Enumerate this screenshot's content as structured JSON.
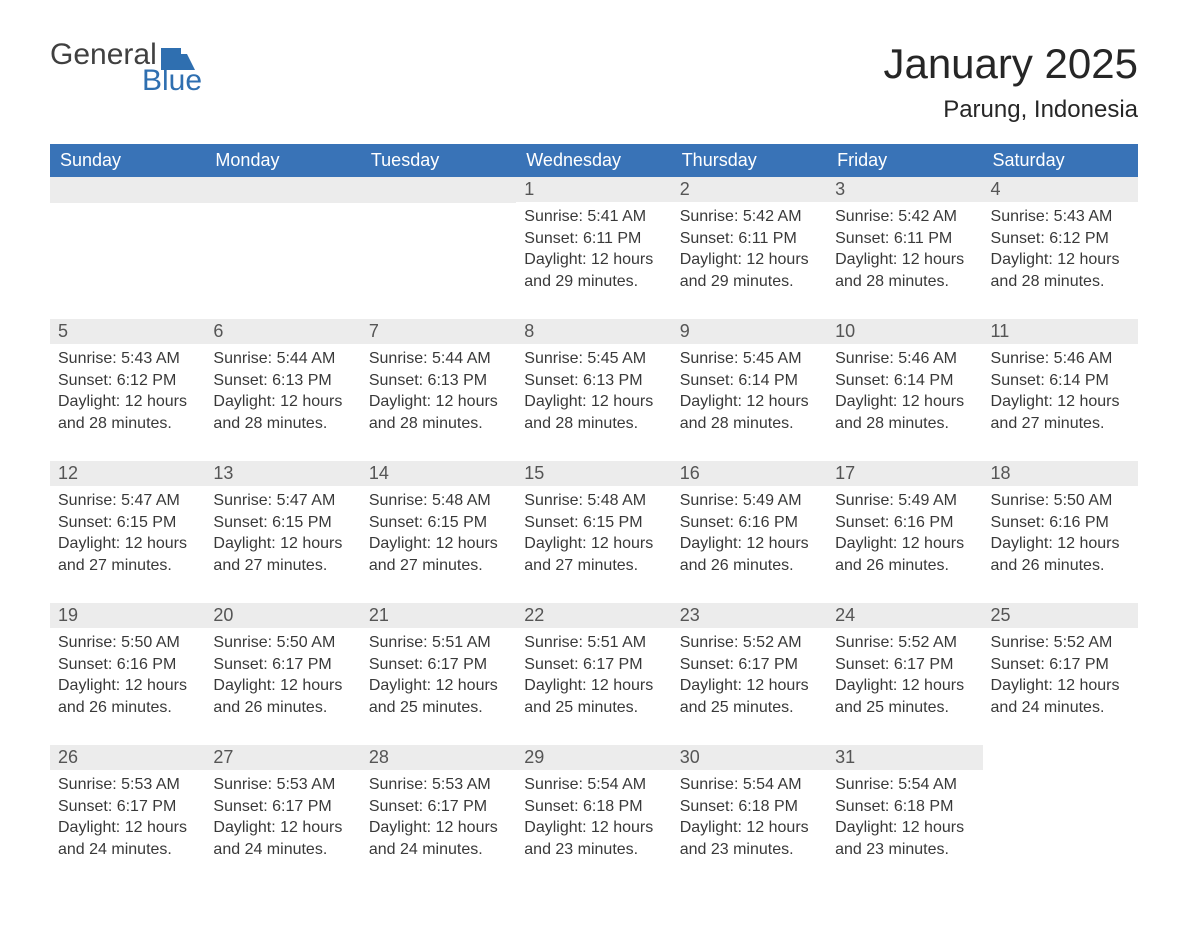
{
  "logo": {
    "text_general": "General",
    "text_blue": "Blue",
    "flag_color": "#2f6fb0",
    "text_color_general": "#404040",
    "text_color_blue": "#2f6fb0"
  },
  "title": {
    "month_year": "January 2025",
    "location": "Parung, Indonesia",
    "title_fontsize": 42,
    "location_fontsize": 24,
    "color": "#262626"
  },
  "styling": {
    "header_bg": "#3973b7",
    "header_text_color": "#ffffff",
    "daynum_bg": "#ececec",
    "daynum_color": "#555555",
    "row_border_color": "#3973b7",
    "body_text_color": "#393939",
    "page_bg": "#ffffff",
    "header_fontsize": 18,
    "daynum_fontsize": 18,
    "body_fontsize": 16
  },
  "weekdays": [
    "Sunday",
    "Monday",
    "Tuesday",
    "Wednesday",
    "Thursday",
    "Friday",
    "Saturday"
  ],
  "leading_blanks": 3,
  "days": [
    {
      "n": "1",
      "sunrise": "Sunrise: 5:41 AM",
      "sunset": "Sunset: 6:11 PM",
      "daylight1": "Daylight: 12 hours",
      "daylight2": "and 29 minutes."
    },
    {
      "n": "2",
      "sunrise": "Sunrise: 5:42 AM",
      "sunset": "Sunset: 6:11 PM",
      "daylight1": "Daylight: 12 hours",
      "daylight2": "and 29 minutes."
    },
    {
      "n": "3",
      "sunrise": "Sunrise: 5:42 AM",
      "sunset": "Sunset: 6:11 PM",
      "daylight1": "Daylight: 12 hours",
      "daylight2": "and 28 minutes."
    },
    {
      "n": "4",
      "sunrise": "Sunrise: 5:43 AM",
      "sunset": "Sunset: 6:12 PM",
      "daylight1": "Daylight: 12 hours",
      "daylight2": "and 28 minutes."
    },
    {
      "n": "5",
      "sunrise": "Sunrise: 5:43 AM",
      "sunset": "Sunset: 6:12 PM",
      "daylight1": "Daylight: 12 hours",
      "daylight2": "and 28 minutes."
    },
    {
      "n": "6",
      "sunrise": "Sunrise: 5:44 AM",
      "sunset": "Sunset: 6:13 PM",
      "daylight1": "Daylight: 12 hours",
      "daylight2": "and 28 minutes."
    },
    {
      "n": "7",
      "sunrise": "Sunrise: 5:44 AM",
      "sunset": "Sunset: 6:13 PM",
      "daylight1": "Daylight: 12 hours",
      "daylight2": "and 28 minutes."
    },
    {
      "n": "8",
      "sunrise": "Sunrise: 5:45 AM",
      "sunset": "Sunset: 6:13 PM",
      "daylight1": "Daylight: 12 hours",
      "daylight2": "and 28 minutes."
    },
    {
      "n": "9",
      "sunrise": "Sunrise: 5:45 AM",
      "sunset": "Sunset: 6:14 PM",
      "daylight1": "Daylight: 12 hours",
      "daylight2": "and 28 minutes."
    },
    {
      "n": "10",
      "sunrise": "Sunrise: 5:46 AM",
      "sunset": "Sunset: 6:14 PM",
      "daylight1": "Daylight: 12 hours",
      "daylight2": "and 28 minutes."
    },
    {
      "n": "11",
      "sunrise": "Sunrise: 5:46 AM",
      "sunset": "Sunset: 6:14 PM",
      "daylight1": "Daylight: 12 hours",
      "daylight2": "and 27 minutes."
    },
    {
      "n": "12",
      "sunrise": "Sunrise: 5:47 AM",
      "sunset": "Sunset: 6:15 PM",
      "daylight1": "Daylight: 12 hours",
      "daylight2": "and 27 minutes."
    },
    {
      "n": "13",
      "sunrise": "Sunrise: 5:47 AM",
      "sunset": "Sunset: 6:15 PM",
      "daylight1": "Daylight: 12 hours",
      "daylight2": "and 27 minutes."
    },
    {
      "n": "14",
      "sunrise": "Sunrise: 5:48 AM",
      "sunset": "Sunset: 6:15 PM",
      "daylight1": "Daylight: 12 hours",
      "daylight2": "and 27 minutes."
    },
    {
      "n": "15",
      "sunrise": "Sunrise: 5:48 AM",
      "sunset": "Sunset: 6:15 PM",
      "daylight1": "Daylight: 12 hours",
      "daylight2": "and 27 minutes."
    },
    {
      "n": "16",
      "sunrise": "Sunrise: 5:49 AM",
      "sunset": "Sunset: 6:16 PM",
      "daylight1": "Daylight: 12 hours",
      "daylight2": "and 26 minutes."
    },
    {
      "n": "17",
      "sunrise": "Sunrise: 5:49 AM",
      "sunset": "Sunset: 6:16 PM",
      "daylight1": "Daylight: 12 hours",
      "daylight2": "and 26 minutes."
    },
    {
      "n": "18",
      "sunrise": "Sunrise: 5:50 AM",
      "sunset": "Sunset: 6:16 PM",
      "daylight1": "Daylight: 12 hours",
      "daylight2": "and 26 minutes."
    },
    {
      "n": "19",
      "sunrise": "Sunrise: 5:50 AM",
      "sunset": "Sunset: 6:16 PM",
      "daylight1": "Daylight: 12 hours",
      "daylight2": "and 26 minutes."
    },
    {
      "n": "20",
      "sunrise": "Sunrise: 5:50 AM",
      "sunset": "Sunset: 6:17 PM",
      "daylight1": "Daylight: 12 hours",
      "daylight2": "and 26 minutes."
    },
    {
      "n": "21",
      "sunrise": "Sunrise: 5:51 AM",
      "sunset": "Sunset: 6:17 PM",
      "daylight1": "Daylight: 12 hours",
      "daylight2": "and 25 minutes."
    },
    {
      "n": "22",
      "sunrise": "Sunrise: 5:51 AM",
      "sunset": "Sunset: 6:17 PM",
      "daylight1": "Daylight: 12 hours",
      "daylight2": "and 25 minutes."
    },
    {
      "n": "23",
      "sunrise": "Sunrise: 5:52 AM",
      "sunset": "Sunset: 6:17 PM",
      "daylight1": "Daylight: 12 hours",
      "daylight2": "and 25 minutes."
    },
    {
      "n": "24",
      "sunrise": "Sunrise: 5:52 AM",
      "sunset": "Sunset: 6:17 PM",
      "daylight1": "Daylight: 12 hours",
      "daylight2": "and 25 minutes."
    },
    {
      "n": "25",
      "sunrise": "Sunrise: 5:52 AM",
      "sunset": "Sunset: 6:17 PM",
      "daylight1": "Daylight: 12 hours",
      "daylight2": "and 24 minutes."
    },
    {
      "n": "26",
      "sunrise": "Sunrise: 5:53 AM",
      "sunset": "Sunset: 6:17 PM",
      "daylight1": "Daylight: 12 hours",
      "daylight2": "and 24 minutes."
    },
    {
      "n": "27",
      "sunrise": "Sunrise: 5:53 AM",
      "sunset": "Sunset: 6:17 PM",
      "daylight1": "Daylight: 12 hours",
      "daylight2": "and 24 minutes."
    },
    {
      "n": "28",
      "sunrise": "Sunrise: 5:53 AM",
      "sunset": "Sunset: 6:17 PM",
      "daylight1": "Daylight: 12 hours",
      "daylight2": "and 24 minutes."
    },
    {
      "n": "29",
      "sunrise": "Sunrise: 5:54 AM",
      "sunset": "Sunset: 6:18 PM",
      "daylight1": "Daylight: 12 hours",
      "daylight2": "and 23 minutes."
    },
    {
      "n": "30",
      "sunrise": "Sunrise: 5:54 AM",
      "sunset": "Sunset: 6:18 PM",
      "daylight1": "Daylight: 12 hours",
      "daylight2": "and 23 minutes."
    },
    {
      "n": "31",
      "sunrise": "Sunrise: 5:54 AM",
      "sunset": "Sunset: 6:18 PM",
      "daylight1": "Daylight: 12 hours",
      "daylight2": "and 23 minutes."
    }
  ]
}
